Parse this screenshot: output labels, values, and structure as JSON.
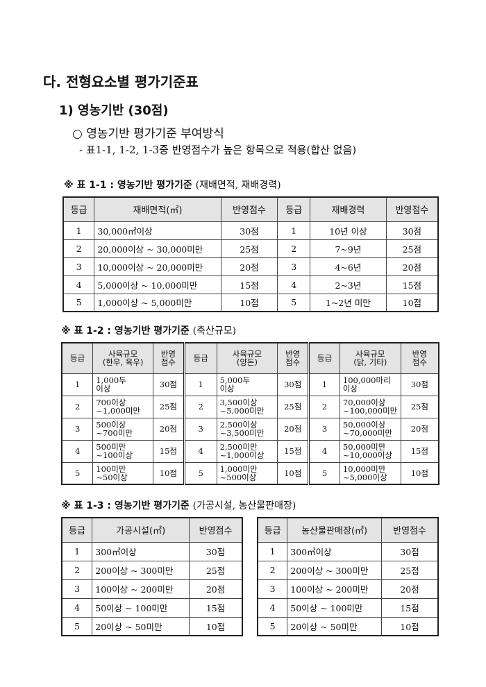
{
  "heading": "다. 전형요소별 평가기준표",
  "section": "1) 영농기반 (30점)",
  "bullet": "○ 영농기반 평가기준 부여방식",
  "note": "- 표1-1, 1-2, 1-3중 반영점수가 높은 항목으로 적용(합산 없음)",
  "table1": {
    "caption": "※ 표 1-1 : 영농기반 평가기준 ",
    "caption_sub": "(재배면적, 재배경력)",
    "headers": [
      "등급",
      "재배면적(㎡)",
      "반영점수",
      "등급",
      "재배경력",
      "반영점수"
    ],
    "rows": [
      [
        "1",
        "30,000㎡이상",
        "30점",
        "1",
        "10년 이상",
        "30점"
      ],
      [
        "2",
        "20,000이상 ~ 30,000미만",
        "25점",
        "2",
        "7~9년",
        "25점"
      ],
      [
        "3",
        "10,000이상 ~ 20,000미만",
        "20점",
        "3",
        "4~6년",
        "20점"
      ],
      [
        "4",
        "5,000이상 ~ 10,000미만",
        "15점",
        "4",
        "2~3년",
        "15점"
      ],
      [
        "5",
        "1,000이상 ~ 5,000미만",
        "10점",
        "5",
        "1~2년 미만",
        "10점"
      ]
    ]
  },
  "table2": {
    "caption": "※ 표 1-2 : 영농기반 평가기준 ",
    "caption_sub": "(축산규모)",
    "headers": [
      "등급",
      "사육규모\n(한우, 육우)",
      "반영\n점수",
      "등급",
      "사육규모\n(양돈)",
      "반영\n점수",
      "등급",
      "사육규모\n(닭, 기타)",
      "반영\n점수"
    ],
    "rows": [
      [
        "1",
        "1,000두\n이상",
        "30점",
        "1",
        "5,000두\n이상",
        "30점",
        "1",
        "100,000마리\n이상",
        "30점"
      ],
      [
        "2",
        "700이상\n~1,000미만",
        "25점",
        "2",
        "3,500이상\n~5,000미만",
        "25점",
        "2",
        "70,000이상\n~100,000미만",
        "25점"
      ],
      [
        "3",
        "500이상\n~700미만",
        "20점",
        "3",
        "2,500이상\n~3,500미만",
        "20점",
        "3",
        "50,000이상\n~70,000미만",
        "20점"
      ],
      [
        "4",
        "500미만\n~100이상",
        "15점",
        "4",
        "2,500미만\n~1,000이상",
        "15점",
        "4",
        "50,000미만\n~10,000이상",
        "15점"
      ],
      [
        "5",
        "100미만\n~50이상",
        "10점",
        "5",
        "1,000미만\n~500이상",
        "10점",
        "5",
        "10,000미만\n~5,000이상",
        "10점"
      ]
    ]
  },
  "table3": {
    "caption": "※ 표 1-3 : 영농기반 평가기준 ",
    "caption_sub": "(가공시설, 농산물판매장)",
    "left": {
      "headers": [
        "등급",
        "가공시설(㎡)",
        "반영점수"
      ],
      "rows": [
        [
          "1",
          "300㎡이상",
          "30점"
        ],
        [
          "2",
          "200이상 ~ 300미만",
          "25점"
        ],
        [
          "3",
          "100이상 ~ 200미만",
          "20점"
        ],
        [
          "4",
          "50이상 ~ 100미만",
          "15점"
        ],
        [
          "5",
          "20이상 ~ 50미만",
          "10점"
        ]
      ]
    },
    "right": {
      "headers": [
        "등급",
        "농산물판매장(㎡)",
        "반영점수"
      ],
      "rows": [
        [
          "1",
          "300㎡이상",
          "30점"
        ],
        [
          "2",
          "200이상 ~ 300미만",
          "25점"
        ],
        [
          "3",
          "100이상 ~ 200미만",
          "20점"
        ],
        [
          "4",
          "50이상 ~ 100미만",
          "15점"
        ],
        [
          "5",
          "20이상 ~ 50미만",
          "10점"
        ]
      ]
    }
  }
}
